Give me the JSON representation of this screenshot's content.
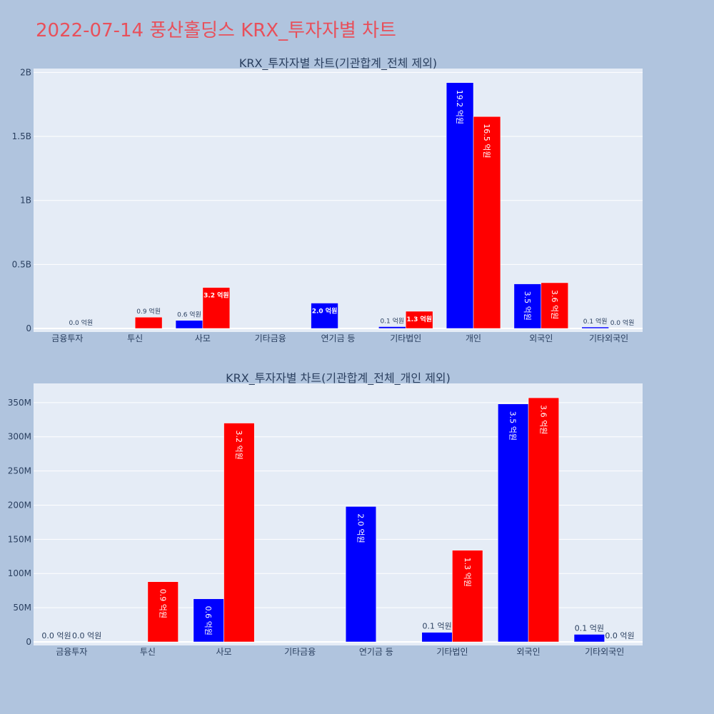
{
  "page": {
    "title": "2022-07-14 풍산홀딩스 KRX_투자자별 차트"
  },
  "colors": {
    "background": "#b0c4de",
    "plot_bg": "#e5ecf6",
    "title": "#e8505b",
    "series_a": "#0000ff",
    "series_b": "#ff0000",
    "text": "#2a3f5f"
  },
  "chart_data": [
    {
      "type": "bar",
      "title": "KRX_투자자별 차트(기관합계_전체 제외)",
      "categories": [
        "금융투자",
        "투신",
        "사모",
        "기타금융",
        "연기금 등",
        "기타법인",
        "개인",
        "외국인",
        "기타외국인"
      ],
      "series": [
        {
          "values": [
            0,
            null,
            63000000,
            null,
            198000000,
            14000000,
            1920000000,
            348000000,
            11000000
          ],
          "labels": [
            "",
            "",
            "0.6 억원",
            "",
            "2.0 억원",
            "0.1 억원",
            "19.2 억원",
            "3.5 억원",
            "0.1 억원"
          ]
        },
        {
          "values": [
            0,
            88000000,
            320000000,
            null,
            null,
            134000000,
            1655000000,
            357000000,
            0
          ],
          "labels": [
            "0.0 억원",
            "0.9 억원",
            "3.2 억원",
            "",
            "",
            "1.3 억원",
            "16.5 억원",
            "3.6 억원",
            "0.0 억원"
          ]
        }
      ],
      "ylim": [
        0,
        2030000000
      ],
      "yticks": [
        0,
        500000000,
        1000000000,
        1500000000,
        2000000000
      ],
      "ytick_labels": [
        "0",
        "0.5B",
        "1B",
        "1.5B",
        "2B"
      ],
      "grid": true
    },
    {
      "type": "bar",
      "title": "KRX_투자자별 차트(기관합계_전체_개인 제외)",
      "categories": [
        "금융투자",
        "투신",
        "사모",
        "기타금융",
        "연기금 등",
        "기타법인",
        "외국인",
        "기타외국인"
      ],
      "series": [
        {
          "values": [
            0,
            null,
            63000000,
            null,
            198000000,
            14000000,
            348000000,
            11000000
          ],
          "labels": [
            "0.0 억원",
            "",
            "0.6 억원",
            "",
            "2.0 억원",
            "0.1 억원",
            "3.5 억원",
            "0.1 억원"
          ]
        },
        {
          "values": [
            0,
            88000000,
            320000000,
            null,
            null,
            134000000,
            357000000,
            0
          ],
          "labels": [
            "0.0 억원",
            "0.9 억원",
            "3.2 억원",
            "",
            "",
            "1.3 억원",
            "3.6 억원",
            "0.0 억원"
          ]
        }
      ],
      "ylim": [
        0,
        378000000
      ],
      "yticks": [
        0,
        50000000,
        100000000,
        150000000,
        200000000,
        250000000,
        300000000,
        350000000
      ],
      "ytick_labels": [
        "0",
        "50M",
        "100M",
        "150M",
        "200M",
        "250M",
        "300M",
        "350M"
      ],
      "grid": true
    }
  ]
}
